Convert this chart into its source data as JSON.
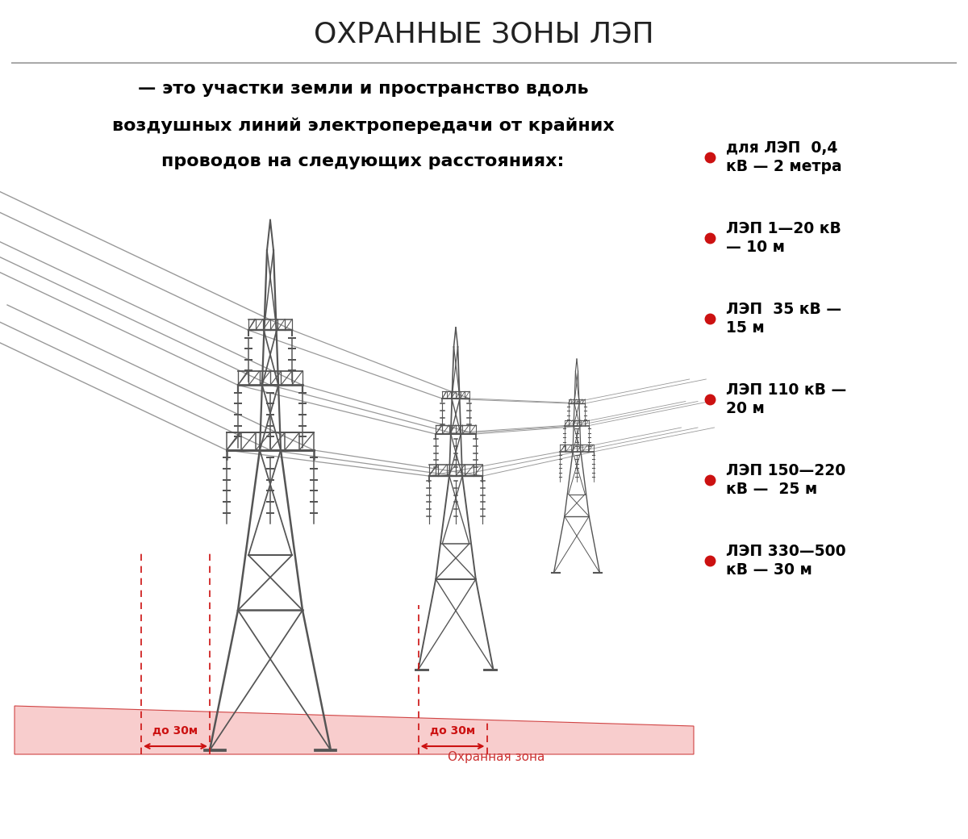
{
  "title": "ОХРАННЫЕ ЗОНЫ ЛЭП",
  "subtitle_line1": "— это участки земли и пространство вдоль",
  "subtitle_line2": "воздушных линий электропередачи от крайних",
  "subtitle_line3": "проводов на следующих расстояниях:",
  "background_color": "#ffffff",
  "title_color": "#222222",
  "text_color": "#000000",
  "tower_color": "#555555",
  "zone_color": "#f8c8c8",
  "zone_edge_color": "#cc3333",
  "dash_color": "#cc1111",
  "bullet_color": "#cc1111",
  "line_color": "#999999",
  "legend_items": [
    "для ЛЭП  0,4\nкВ — 2 метра",
    "ЛЭП 1—20 кВ\n— 10 м",
    "ЛЭП  35 кВ —\n15 м",
    "ЛЭП 110 кВ —\n20 м",
    "ЛЭП 150—220\nкВ —  25 м",
    "ЛЭП 330—500\nкВ — 30 м"
  ],
  "label_left": "до 30м",
  "label_right": "до 30м",
  "zone_label": "Охранная зона"
}
